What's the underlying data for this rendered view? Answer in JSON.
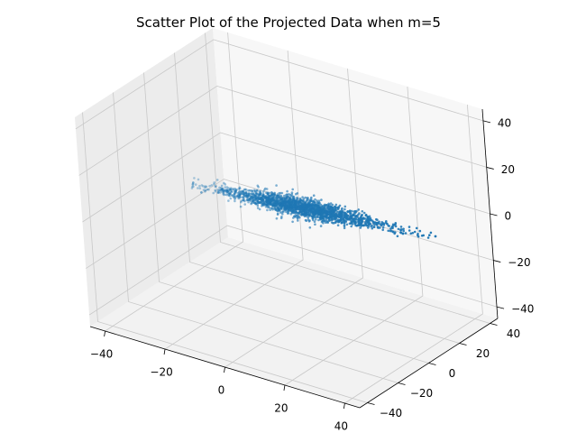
{
  "chart_data": {
    "type": "scatter",
    "projection": "3d",
    "title": "Scatter Plot of the Projected Data when m=5",
    "xlim": [
      -45,
      45
    ],
    "ylim": [
      -45,
      45
    ],
    "zlim": [
      -45,
      45
    ],
    "x_ticks": [
      -40,
      -20,
      0,
      20,
      40
    ],
    "y_ticks": [
      -40,
      -20,
      0,
      20,
      40
    ],
    "z_ticks": [
      -40,
      -20,
      0,
      20,
      40
    ],
    "x_tick_labels": [
      "−40",
      "−20",
      "0",
      "20",
      "40"
    ],
    "y_tick_labels": [
      "−40",
      "−20",
      "0",
      "20",
      "40"
    ],
    "z_tick_labels": [
      "−40",
      "−20",
      "0",
      "20",
      "40"
    ],
    "grid": true,
    "point_color": "#1f77b4",
    "distribution": {
      "description_of_cluster": "dense elongated cloud",
      "count": 2000,
      "x_range": [
        -18,
        18
      ],
      "y_range": [
        -20,
        20
      ],
      "z_center": -2
    }
  }
}
